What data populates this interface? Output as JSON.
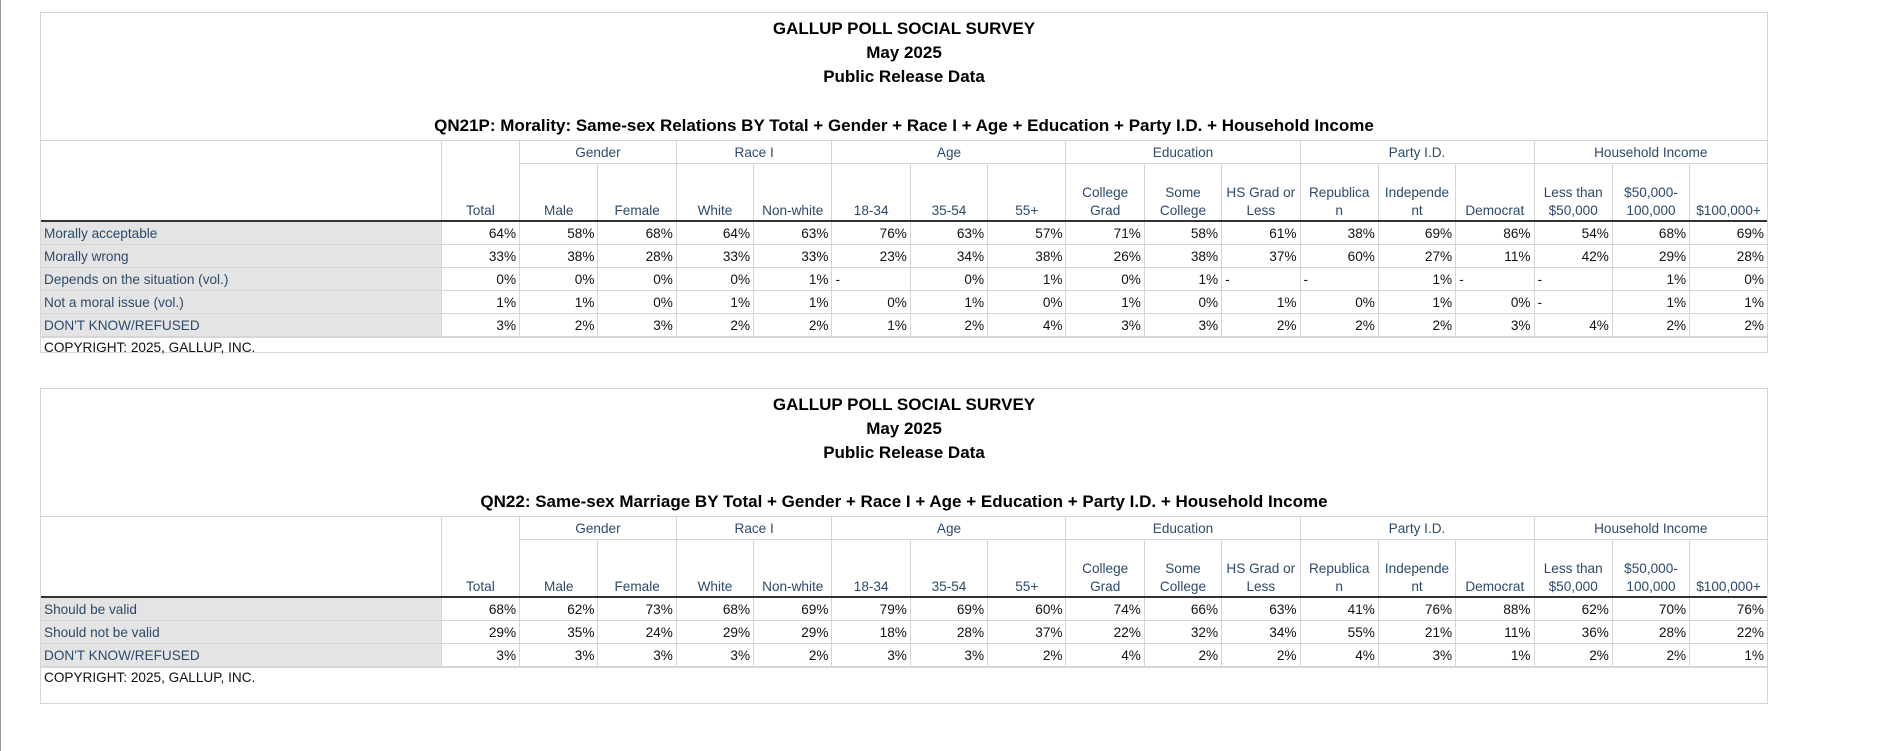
{
  "survey": {
    "title": "GALLUP POLL SOCIAL SURVEY",
    "date": "May 2025",
    "release": "Public Release Data",
    "copyright": "COPYRIGHT: 2025, GALLUP, INC."
  },
  "groups": [
    "Gender",
    "Race I",
    "Age",
    "Education",
    "Party I.D.",
    "Household Income"
  ],
  "columns": [
    "Total",
    "Male",
    "Female",
    "White",
    "Non-white",
    "18-34",
    "35-54",
    "55+",
    "College Grad",
    "Some College",
    "HS Grad or Less",
    "Republica n",
    "Independe nt",
    "Democrat",
    "Less than $50,000",
    "$50,000- 100,000",
    "$100,000+"
  ],
  "tables": [
    {
      "title": "QN21P: Morality: Same-sex Relations BY Total + Gender + Race I + Age + Education + Party I.D. + Household Income",
      "rows": [
        {
          "label": "Morally acceptable",
          "values": [
            "64%",
            "58%",
            "68%",
            "64%",
            "63%",
            "76%",
            "63%",
            "57%",
            "71%",
            "58%",
            "61%",
            "38%",
            "69%",
            "86%",
            "54%",
            "68%",
            "69%"
          ]
        },
        {
          "label": "Morally wrong",
          "values": [
            "33%",
            "38%",
            "28%",
            "33%",
            "33%",
            "23%",
            "34%",
            "38%",
            "26%",
            "38%",
            "37%",
            "60%",
            "27%",
            "11%",
            "42%",
            "29%",
            "28%"
          ]
        },
        {
          "label": "Depends on the situation (vol.)",
          "values": [
            "0%",
            "0%",
            "0%",
            "0%",
            "1%",
            "-",
            "0%",
            "1%",
            "0%",
            "1%",
            "-",
            "-",
            "1%",
            "-",
            "-",
            "1%",
            "0%"
          ]
        },
        {
          "label": "Not a moral issue (vol.)",
          "values": [
            "1%",
            "1%",
            "0%",
            "1%",
            "1%",
            "0%",
            "1%",
            "0%",
            "1%",
            "0%",
            "1%",
            "0%",
            "1%",
            "0%",
            "-",
            "1%",
            "1%"
          ]
        },
        {
          "label": "DON'T KNOW/REFUSED",
          "values": [
            "3%",
            "2%",
            "3%",
            "2%",
            "2%",
            "1%",
            "2%",
            "4%",
            "3%",
            "3%",
            "2%",
            "2%",
            "2%",
            "3%",
            "4%",
            "2%",
            "2%"
          ]
        }
      ]
    },
    {
      "title": "QN22: Same-sex Marriage BY Total + Gender + Race I + Age + Education + Party I.D. + Household Income",
      "rows": [
        {
          "label": "Should be valid",
          "values": [
            "68%",
            "62%",
            "73%",
            "68%",
            "69%",
            "79%",
            "69%",
            "60%",
            "74%",
            "66%",
            "63%",
            "41%",
            "76%",
            "88%",
            "62%",
            "70%",
            "76%"
          ]
        },
        {
          "label": "Should not be valid",
          "values": [
            "29%",
            "35%",
            "24%",
            "29%",
            "29%",
            "18%",
            "28%",
            "37%",
            "22%",
            "32%",
            "34%",
            "55%",
            "21%",
            "11%",
            "36%",
            "28%",
            "22%"
          ]
        },
        {
          "label": "DON'T KNOW/REFUSED",
          "values": [
            "3%",
            "3%",
            "3%",
            "3%",
            "2%",
            "3%",
            "3%",
            "2%",
            "4%",
            "2%",
            "2%",
            "4%",
            "3%",
            "1%",
            "2%",
            "2%",
            "1%"
          ]
        }
      ]
    }
  ]
}
